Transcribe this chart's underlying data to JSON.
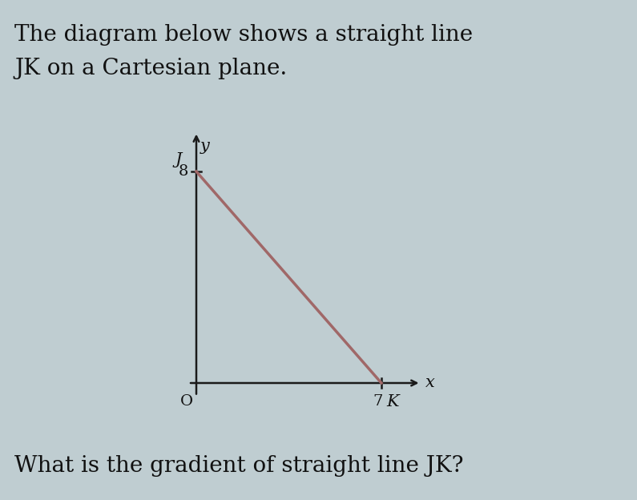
{
  "title_line1": "The diagram below shows a straight line",
  "title_line2": "JK on a Cartesian plane.",
  "question": "What is the gradient of straight line JK?",
  "J": [
    0,
    8
  ],
  "K": [
    7,
    0
  ],
  "origin_label": "O",
  "J_label": "J",
  "K_label": "K",
  "x_label": "x",
  "y_label": "y",
  "tick_8_label": "8",
  "tick_7_label": "7",
  "line_color": "#a06868",
  "axis_color": "#1a1a1a",
  "background_color": "#bfcdd1",
  "text_color": "#111111",
  "title_fontsize": 20,
  "question_fontsize": 20,
  "label_fontsize": 15,
  "tick_fontsize": 14,
  "axis_xlim": [
    -0.8,
    9.0
  ],
  "axis_ylim": [
    -1.2,
    10.2
  ]
}
